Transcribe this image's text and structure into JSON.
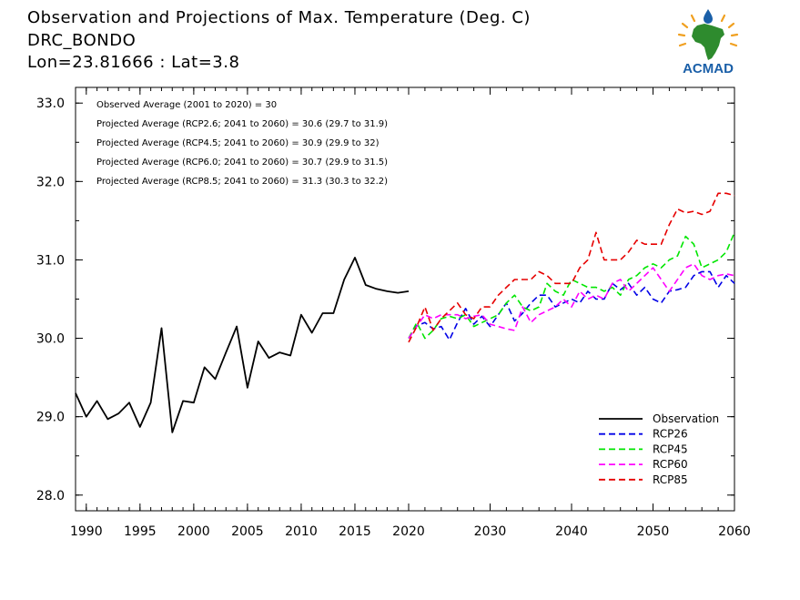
{
  "title": {
    "line1": "Observation and Projections of Max. Temperature (Deg. C)",
    "line2": "DRC_BONDO",
    "line3": "Lon=23.81666 : Lat=3.8"
  },
  "logo": {
    "text": "ACMAD",
    "icon": "africa-map-logo",
    "color": "#1a5fa8"
  },
  "chart_data": {
    "type": "line",
    "title": "Observation and Projections of Max. Temperature (Deg. C)",
    "xlabel": "",
    "ylabel": "",
    "ylim": [
      27.8,
      33.2
    ],
    "yticks": [
      28.0,
      29.0,
      30.0,
      31.0,
      32.0,
      33.0
    ],
    "ytick_labels": [
      "28.0",
      "29.0",
      "30.0",
      "31.0",
      "32.0",
      "33.0"
    ],
    "xticks_left": [
      1990,
      1995,
      2000,
      2005,
      2010,
      2015,
      2020
    ],
    "xticks_right": [
      2030,
      2040,
      2050,
      2060
    ],
    "grid": false,
    "legend_position": "lower-right",
    "annotations": [
      "Observed Average (2001 to 2020) = 30",
      "Projected Average (RCP2.6; 2041 to 2060) = 30.6 (29.7 to 31.9)",
      "Projected Average (RCP4.5; 2041 to 2060) = 30.9 (29.9 to 32)",
      "Projected Average (RCP6.0; 2041 to 2060) = 30.7 (29.9 to 31.5)",
      "Projected Average (RCP8.5; 2041 to 2060) = 31.3 (30.3 to 32.2)"
    ],
    "series": [
      {
        "name": "Observation",
        "color": "#000000",
        "dash": false,
        "x": [
          1989,
          1990,
          1991,
          1992,
          1993,
          1994,
          1995,
          1996,
          1997,
          1998,
          1999,
          2000,
          2001,
          2002,
          2003,
          2004,
          2005,
          2006,
          2007,
          2008,
          2009,
          2010,
          2011,
          2012,
          2013,
          2014,
          2015,
          2016,
          2017,
          2018,
          2019,
          2020
        ],
        "y": [
          29.3,
          29.0,
          29.2,
          28.97,
          29.04,
          29.18,
          28.87,
          29.18,
          30.13,
          28.8,
          29.2,
          29.18,
          29.63,
          29.48,
          29.82,
          30.15,
          29.37,
          29.96,
          29.75,
          29.82,
          29.78,
          30.3,
          30.07,
          30.32,
          30.32,
          30.75,
          31.03,
          30.68,
          30.63,
          30.6,
          30.58,
          30.6
        ]
      },
      {
        "name": "RCP26",
        "color": "#0000e6",
        "dash": true,
        "x": [
          2020,
          2021,
          2022,
          2023,
          2024,
          2025,
          2026,
          2027,
          2028,
          2029,
          2030,
          2031,
          2032,
          2033,
          2034,
          2035,
          2036,
          2037,
          2038,
          2039,
          2040,
          2041,
          2042,
          2043,
          2044,
          2045,
          2046,
          2047,
          2048,
          2049,
          2050,
          2051,
          2052,
          2053,
          2054,
          2055,
          2056,
          2057,
          2058,
          2059,
          2060
        ],
        "y": [
          30.0,
          30.16,
          30.2,
          30.12,
          30.15,
          29.98,
          30.2,
          30.38,
          30.18,
          30.28,
          30.15,
          30.3,
          30.45,
          30.22,
          30.32,
          30.45,
          30.55,
          30.55,
          30.4,
          30.45,
          30.5,
          30.45,
          30.6,
          30.5,
          30.5,
          30.7,
          30.62,
          30.7,
          30.55,
          30.65,
          30.5,
          30.45,
          30.6,
          30.62,
          30.65,
          30.8,
          30.85,
          30.85,
          30.65,
          30.8,
          30.7
        ]
      },
      {
        "name": "RCP45",
        "color": "#00e600",
        "dash": true,
        "x": [
          2020,
          2021,
          2022,
          2023,
          2024,
          2025,
          2026,
          2027,
          2028,
          2029,
          2030,
          2031,
          2032,
          2033,
          2034,
          2035,
          2036,
          2037,
          2038,
          2039,
          2040,
          2041,
          2042,
          2043,
          2044,
          2045,
          2046,
          2047,
          2048,
          2049,
          2050,
          2051,
          2052,
          2053,
          2054,
          2055,
          2056,
          2057,
          2058,
          2059,
          2060
        ],
        "y": [
          30.0,
          30.2,
          30.0,
          30.1,
          30.25,
          30.28,
          30.25,
          30.3,
          30.15,
          30.2,
          30.25,
          30.3,
          30.45,
          30.55,
          30.4,
          30.35,
          30.4,
          30.7,
          30.6,
          30.55,
          30.75,
          30.7,
          30.65,
          30.65,
          30.6,
          30.65,
          30.55,
          30.75,
          30.8,
          30.9,
          30.95,
          30.9,
          31.0,
          31.05,
          31.3,
          31.2,
          30.9,
          30.95,
          31.0,
          31.1,
          31.35
        ]
      },
      {
        "name": "RCP60",
        "color": "#ff00ff",
        "dash": true,
        "x": [
          2020,
          2021,
          2022,
          2023,
          2024,
          2025,
          2026,
          2027,
          2028,
          2029,
          2030,
          2031,
          2032,
          2033,
          2034,
          2035,
          2036,
          2037,
          2038,
          2039,
          2040,
          2041,
          2042,
          2043,
          2044,
          2045,
          2046,
          2047,
          2048,
          2049,
          2050,
          2051,
          2052,
          2053,
          2054,
          2055,
          2056,
          2057,
          2058,
          2059,
          2060
        ],
        "y": [
          30.0,
          30.15,
          30.3,
          30.25,
          30.3,
          30.3,
          30.3,
          30.25,
          30.28,
          30.3,
          30.18,
          30.15,
          30.12,
          30.1,
          30.4,
          30.2,
          30.3,
          30.35,
          30.4,
          30.5,
          30.4,
          30.6,
          30.5,
          30.55,
          30.5,
          30.7,
          30.75,
          30.6,
          30.7,
          30.8,
          30.9,
          30.75,
          30.6,
          30.75,
          30.9,
          30.95,
          30.8,
          30.75,
          30.8,
          30.82,
          30.8
        ]
      },
      {
        "name": "RCP85",
        "color": "#e60000",
        "dash": true,
        "x": [
          2020,
          2021,
          2022,
          2023,
          2024,
          2025,
          2026,
          2027,
          2028,
          2029,
          2030,
          2031,
          2032,
          2033,
          2034,
          2035,
          2036,
          2037,
          2038,
          2039,
          2040,
          2041,
          2042,
          2043,
          2044,
          2045,
          2046,
          2047,
          2048,
          2049,
          2050,
          2051,
          2052,
          2053,
          2054,
          2055,
          2056,
          2057,
          2058,
          2059,
          2060
        ],
        "y": [
          29.95,
          30.15,
          30.4,
          30.1,
          30.25,
          30.35,
          30.45,
          30.3,
          30.25,
          30.4,
          30.4,
          30.55,
          30.65,
          30.75,
          30.75,
          30.75,
          30.85,
          30.8,
          30.7,
          30.7,
          30.7,
          30.9,
          31.0,
          31.35,
          31.0,
          31.0,
          31.0,
          31.1,
          31.25,
          31.2,
          31.2,
          31.2,
          31.45,
          31.65,
          31.6,
          31.62,
          31.58,
          31.62,
          31.85,
          31.85,
          31.82
        ]
      }
    ]
  }
}
